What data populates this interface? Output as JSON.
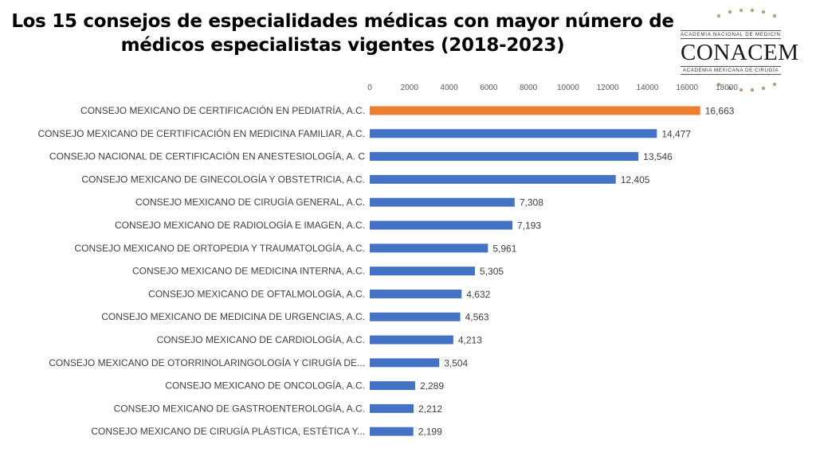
{
  "title_line1": "Los 15 consejos de especialidades médicas con mayor número de",
  "title_line2": "médicos especialistas vigentes (2018-2023)",
  "logo": {
    "top_text": "ACADEMIA NACIONAL DE MEDICINA",
    "brand": "CONACEM",
    "bottom_text": "ACADEMIA MEXICANA DE CIRUGÍA"
  },
  "colors": {
    "highlight": "#ED7D31",
    "bar": "#4472C4"
  },
  "chart_data": {
    "type": "bar",
    "orientation": "horizontal",
    "xlim": [
      0,
      18000
    ],
    "xticks": [
      0,
      2000,
      4000,
      6000,
      8000,
      10000,
      12000,
      14000,
      16000,
      18000
    ],
    "xtick_labels": [
      "0",
      "2000",
      "4000",
      "6000",
      "8000",
      "10000",
      "12000",
      "14000",
      "16000",
      "18000"
    ],
    "grid": false,
    "categories": [
      "CONSEJO MEXICANO DE CERTIFICACIÓN EN PEDIATRÍA, A.C.",
      "CONSEJO MEXICANO DE CERTIFICACIÓN EN MEDICINA FAMILIAR, A.C.",
      "CONSEJO NACIONAL DE CERTIFICACIÓN EN ANESTESIOLOGÍA, A. C",
      "CONSEJO MEXICANO DE GINECOLOGÍA Y OBSTETRICIA, A.C.",
      "CONSEJO MEXICANO DE CIRUGÍA GENERAL, A.C.",
      "CONSEJO MEXICANO DE RADIOLOGÍA E IMAGEN, A.C.",
      "CONSEJO MEXICANO DE ORTOPEDIA Y TRAUMATOLOGÍA, A.C.",
      "CONSEJO MEXICANO DE MEDICINA INTERNA, A.C.",
      "CONSEJO MEXICANO DE OFTALMOLOGÍA, A.C.",
      "CONSEJO MEXICANO DE MEDICINA DE URGENCIAS, A.C.",
      "CONSEJO MEXICANO DE CARDIOLOGÍA, A.C.",
      "CONSEJO MEXICANO DE OTORRINOLARINGOLOGÍA Y CIRUGÍA DE...",
      "CONSEJO MEXICANO DE ONCOLOGÍA, A.C.",
      "CONSEJO MEXICANO DE GASTROENTEROLOGÍA, A.C.",
      "CONSEJO MEXICANO DE CIRUGÍA PLÁSTICA, ESTÉTICA Y..."
    ],
    "values": [
      16663,
      14477,
      13546,
      12405,
      7308,
      7193,
      5961,
      5305,
      4632,
      4563,
      4213,
      3504,
      2289,
      2212,
      2199
    ],
    "value_labels": [
      "16,663",
      "14,477",
      "13,546",
      "12,405",
      "7,308",
      "7,193",
      "5,961",
      "5,305",
      "4,632",
      "4,563",
      "4,213",
      "3,504",
      "2,289",
      "2,212",
      "2,199"
    ],
    "highlight_index": 0
  }
}
